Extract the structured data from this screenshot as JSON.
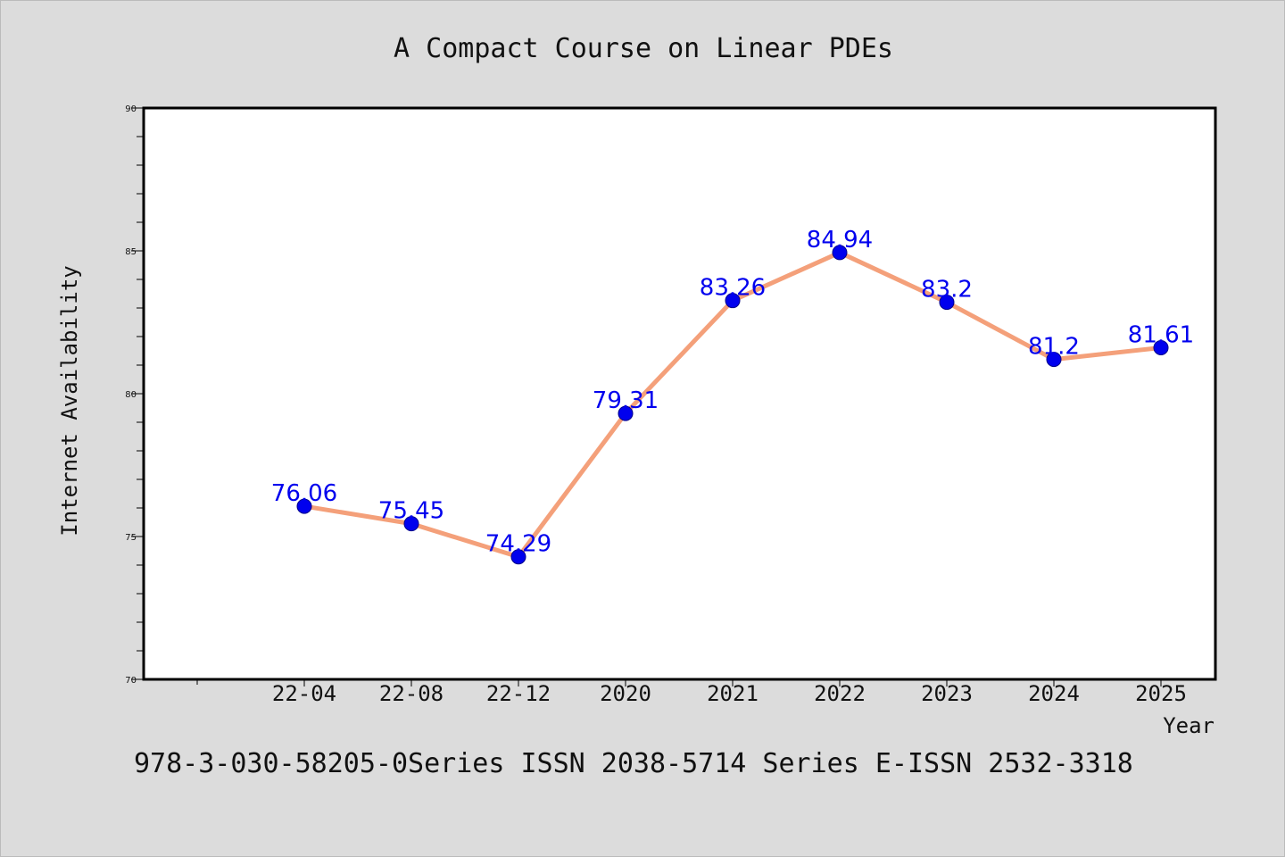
{
  "chart_data": {
    "type": "line",
    "title": "A Compact Course on Linear PDEs",
    "xlabel": "Year",
    "ylabel": "Internet Availability",
    "categories": [
      "22-04",
      "22-08",
      "22-12",
      "2020",
      "2021",
      "2022",
      "2023",
      "2024",
      "2025"
    ],
    "series": [
      {
        "values": [
          76.06,
          75.45,
          74.29,
          79.31,
          83.26,
          84.94,
          83.2,
          81.2,
          81.61
        ],
        "data_labels": [
          "76.06",
          "75.45",
          "74.29",
          "79.31",
          "83.26",
          "84.94",
          "83.2",
          "81.2",
          "81.61"
        ],
        "line_color": "#f4a07a",
        "marker_color": "#0000ee"
      }
    ],
    "ylim": [
      70,
      90
    ],
    "yticks": [
      70,
      75,
      80,
      85,
      90
    ],
    "grid": false,
    "legend": "none"
  },
  "footer_text": "978-3-030-58205-0Series ISSN 2038-5714 Series E-ISSN 2532-3318"
}
